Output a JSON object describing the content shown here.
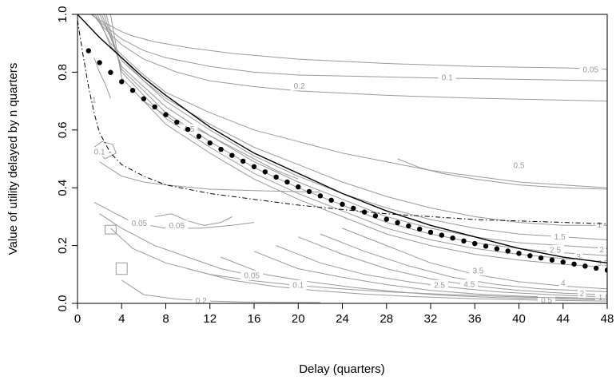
{
  "chart_data": {
    "type": "line",
    "title": "",
    "xlabel": "Delay (quarters)",
    "ylabel": "Value of utility delayed by n quarters",
    "xlim": [
      0,
      48
    ],
    "ylim": [
      0,
      1
    ],
    "x_ticks": [
      0,
      4,
      8,
      12,
      16,
      20,
      24,
      28,
      32,
      36,
      40,
      44,
      48
    ],
    "x_tick_labels": [
      "0",
      "4",
      "8",
      "12",
      "16",
      "20",
      "24",
      "28",
      "32",
      "36",
      "40",
      "44",
      "48"
    ],
    "y_ticks": [
      0,
      0.2,
      0.4,
      0.6,
      0.8,
      1
    ],
    "y_tick_labels": [
      "0.0",
      "0.2",
      "0.4",
      "0.6",
      "0.8",
      "1.0"
    ],
    "grid": false,
    "legend": "none",
    "colors": {
      "contour": "#9a9a9a",
      "curves": "#000000",
      "background": "#ffffff"
    },
    "series": [
      {
        "style": "solid",
        "x": [
          0,
          2,
          4,
          6,
          8,
          12,
          16,
          20,
          24,
          28,
          32,
          36,
          40,
          44,
          48
        ],
        "values": [
          1.0,
          0.92,
          0.85,
          0.78,
          0.72,
          0.61,
          0.52,
          0.45,
          0.38,
          0.32,
          0.27,
          0.23,
          0.19,
          0.16,
          0.14
        ]
      },
      {
        "style": "points",
        "x": [
          1,
          2,
          3,
          4,
          5,
          6,
          7,
          8,
          9,
          10,
          11,
          12,
          13,
          14,
          15,
          16,
          17,
          18,
          19,
          20,
          21,
          22,
          23,
          24,
          25,
          26,
          27,
          28,
          29,
          30,
          31,
          32,
          33,
          34,
          35,
          36,
          37,
          38,
          39,
          40,
          41,
          42,
          43,
          44,
          45,
          46,
          47,
          48
        ],
        "values": [
          0.874,
          0.833,
          0.799,
          0.767,
          0.737,
          0.708,
          0.68,
          0.653,
          0.627,
          0.602,
          0.578,
          0.555,
          0.533,
          0.512,
          0.492,
          0.473,
          0.455,
          0.437,
          0.42,
          0.403,
          0.387,
          0.372,
          0.357,
          0.343,
          0.329,
          0.316,
          0.303,
          0.291,
          0.279,
          0.268,
          0.257,
          0.246,
          0.236,
          0.226,
          0.216,
          0.207,
          0.198,
          0.189,
          0.181,
          0.173,
          0.165,
          0.157,
          0.15,
          0.143,
          0.136,
          0.129,
          0.122,
          0.115
        ]
      },
      {
        "style": "dashdot",
        "x": [
          0,
          0.5,
          1,
          1.5,
          2,
          3,
          4,
          6,
          8,
          10,
          12,
          16,
          20,
          24,
          28,
          32,
          36,
          40,
          44,
          48
        ],
        "values": [
          0.98,
          0.86,
          0.75,
          0.66,
          0.59,
          0.52,
          0.48,
          0.44,
          0.41,
          0.395,
          0.38,
          0.36,
          0.34,
          0.325,
          0.31,
          0.3,
          0.29,
          0.285,
          0.28,
          0.275
        ]
      }
    ],
    "contours": [
      {
        "level": "0.05",
        "x": [
          1.2,
          2,
          3,
          4,
          5,
          7,
          10,
          14,
          20,
          28,
          36,
          44,
          48
        ],
        "y": [
          1,
          0.98,
          0.96,
          0.94,
          0.925,
          0.905,
          0.885,
          0.865,
          0.845,
          0.83,
          0.82,
          0.815,
          0.81
        ],
        "label": {
          "x": 46.5,
          "y": 0.81
        }
      },
      {
        "level": "0.1",
        "x": [
          1.3,
          2,
          3,
          4,
          6,
          8,
          12,
          16,
          20,
          26,
          32,
          40,
          48
        ],
        "y": [
          1,
          0.975,
          0.945,
          0.915,
          0.875,
          0.85,
          0.82,
          0.8,
          0.79,
          0.785,
          0.78,
          0.775,
          0.77
        ],
        "label": {
          "x": 33.5,
          "y": 0.782
        }
      },
      {
        "level": "0.2",
        "x": [
          1.4,
          2,
          3,
          4,
          6,
          9,
          12,
          16,
          20,
          28,
          36,
          48
        ],
        "y": [
          1,
          0.97,
          0.93,
          0.895,
          0.845,
          0.8,
          0.77,
          0.75,
          0.735,
          0.72,
          0.71,
          0.7
        ],
        "label": {
          "x": 20.1,
          "y": 0.753
        }
      },
      {
        "level": "0.5",
        "x": [
          1.6,
          3,
          4,
          6,
          8,
          12,
          16,
          20,
          24,
          28,
          32,
          36,
          40,
          44,
          48
        ],
        "y": [
          1,
          0.9,
          0.86,
          0.79,
          0.73,
          0.66,
          0.6,
          0.56,
          0.52,
          0.49,
          0.46,
          0.44,
          0.42,
          0.41,
          0.4
        ],
        "label": {
          "x": 40.0,
          "y": 0.478
        }
      },
      {
        "level": "1",
        "x": [
          1.8,
          3,
          4,
          6,
          8,
          12,
          16,
          20,
          24,
          28,
          32,
          36,
          40,
          44,
          48
        ],
        "y": [
          1,
          0.89,
          0.85,
          0.77,
          0.71,
          0.62,
          0.54,
          0.48,
          0.42,
          0.37,
          0.33,
          0.3,
          0.28,
          0.27,
          0.27
        ],
        "label": {
          "x": 47.3,
          "y": 0.272
        }
      },
      {
        "level": "1.5",
        "x": [
          2,
          4,
          8,
          12,
          16,
          20,
          24,
          28,
          32,
          36,
          40,
          44,
          48
        ],
        "y": [
          1,
          0.84,
          0.7,
          0.6,
          0.51,
          0.44,
          0.38,
          0.33,
          0.29,
          0.26,
          0.24,
          0.23,
          0.22
        ],
        "label": {
          "x": 43.7,
          "y": 0.23
        }
      },
      {
        "level": "2",
        "x": [
          2.2,
          4,
          8,
          12,
          16,
          20,
          24,
          28,
          32,
          36,
          40,
          44,
          48
        ],
        "y": [
          1,
          0.82,
          0.68,
          0.58,
          0.49,
          0.42,
          0.36,
          0.3,
          0.26,
          0.23,
          0.21,
          0.2,
          0.19
        ],
        "label": {
          "x": 47.5,
          "y": 0.187
        }
      },
      {
        "level": "2.5",
        "x": [
          2.4,
          4,
          8,
          12,
          16,
          20,
          24,
          28,
          32,
          36,
          40,
          44,
          48
        ],
        "y": [
          1,
          0.81,
          0.66,
          0.56,
          0.47,
          0.4,
          0.34,
          0.28,
          0.24,
          0.21,
          0.19,
          0.175,
          0.165
        ],
        "label": {
          "x": 43.3,
          "y": 0.185
        }
      },
      {
        "level": "3",
        "x": [
          2.6,
          4,
          8,
          12,
          16,
          20,
          24,
          28,
          32,
          36,
          40,
          44,
          48
        ],
        "y": [
          1,
          0.8,
          0.64,
          0.54,
          0.45,
          0.38,
          0.32,
          0.26,
          0.22,
          0.19,
          0.17,
          0.155,
          0.145
        ],
        "label": {
          "x": 45.4,
          "y": 0.162
        }
      },
      {
        "level": "3.5",
        "x": [
          3,
          4,
          8,
          12,
          16,
          20,
          24,
          28,
          32,
          36,
          40,
          44,
          48
        ],
        "y": [
          1,
          0.78,
          0.62,
          0.52,
          0.43,
          0.36,
          0.3,
          0.24,
          0.2,
          0.17,
          0.15,
          0.135,
          0.125
        ],
        "label": {
          "x": 47.6,
          "y": 0.14
        }
      },
      {
        "level": "3.5",
        "x": [
          24,
          28,
          32,
          36,
          40,
          44,
          48
        ],
        "y": [
          0.26,
          0.2,
          0.14,
          0.1,
          0.075,
          0.06,
          0.05
        ],
        "label": {
          "x": 36.3,
          "y": 0.113
        }
      },
      {
        "level": "4",
        "x": [
          22,
          26,
          30,
          34,
          38,
          42,
          48
        ],
        "y": [
          0.24,
          0.18,
          0.13,
          0.09,
          0.065,
          0.05,
          0.04
        ],
        "label": {
          "x": 44.0,
          "y": 0.07
        }
      },
      {
        "level": "4.5",
        "x": [
          20,
          24,
          28,
          32,
          36,
          40,
          44,
          48
        ],
        "y": [
          0.23,
          0.17,
          0.12,
          0.085,
          0.06,
          0.045,
          0.035,
          0.03
        ],
        "label": {
          "x": 35.5,
          "y": 0.066
        }
      },
      {
        "level": "4.5",
        "x": [
          6,
          8,
          9,
          10,
          11,
          12,
          13,
          14,
          16,
          18,
          20
        ],
        "y": [
          0.7,
          0.65,
          0.625,
          0.61,
          0.6,
          0.58,
          0.56,
          0.54,
          0.5,
          0.46,
          0.43
        ],
        "label": {
          "x": 10.1,
          "y": 0.603
        }
      },
      {
        "level": "2.5",
        "x": [
          18,
          22,
          26,
          30,
          34,
          38,
          44,
          48
        ],
        "y": [
          0.2,
          0.14,
          0.1,
          0.075,
          0.055,
          0.04,
          0.028,
          0.022
        ],
        "label": {
          "x": 32.8,
          "y": 0.064
        }
      },
      {
        "level": "2",
        "x": [
          16,
          20,
          24,
          28,
          32,
          36,
          40,
          48
        ],
        "y": [
          0.18,
          0.12,
          0.09,
          0.065,
          0.045,
          0.033,
          0.025,
          0.016
        ],
        "label": {
          "x": 45.7,
          "y": 0.034
        }
      },
      {
        "level": "1.5",
        "x": [
          13,
          17,
          21,
          25,
          29,
          33,
          38,
          48
        ],
        "y": [
          0.16,
          0.1,
          0.075,
          0.055,
          0.04,
          0.028,
          0.02,
          0.012
        ],
        "label": {
          "x": 47.7,
          "y": 0.021
        }
      },
      {
        "level": "0.5",
        "x": [
          10,
          14,
          18,
          22,
          26,
          30,
          36,
          42,
          48
        ],
        "y": [
          0.12,
          0.08,
          0.058,
          0.043,
          0.032,
          0.024,
          0.016,
          0.011,
          0.008
        ],
        "label": {
          "x": 42.5,
          "y": 0.011
        }
      },
      {
        "level": "0.1",
        "x": [
          3,
          5,
          8,
          12,
          16,
          20,
          24,
          28,
          34,
          40,
          48
        ],
        "y": [
          0.26,
          0.19,
          0.14,
          0.1,
          0.078,
          0.062,
          0.05,
          0.04,
          0.03,
          0.022,
          0.016
        ],
        "label": {
          "x": 20.0,
          "y": 0.064
        }
      },
      {
        "level": "0.05",
        "x": [
          2,
          4,
          7,
          10,
          13,
          16
        ],
        "y": [
          0.31,
          0.26,
          0.2,
          0.16,
          0.12,
          0.095
        ],
        "label": {
          "x": 15.8,
          "y": 0.097
        }
      },
      {
        "level": "0.05",
        "x": [
          1.5,
          3,
          5,
          8,
          11,
          14,
          16
        ],
        "y": [
          0.35,
          0.32,
          0.28,
          0.26,
          0.26,
          0.27,
          0.28
        ],
        "label": {
          "x": 5.6,
          "y": 0.278
        }
      },
      {
        "level": "0.05",
        "x": [
          7,
          8.5,
          10,
          11.5,
          13,
          14
        ],
        "y": [
          0.3,
          0.31,
          0.285,
          0.27,
          0.28,
          0.3
        ],
        "label": {
          "x": 9.0,
          "y": 0.27
        }
      },
      {
        "level": "0.2",
        "x": [
          4,
          6,
          9,
          12,
          15,
          18,
          22
        ],
        "y": [
          0.08,
          0.03,
          0.015,
          0.008,
          0.005,
          0.004,
          0.003
        ],
        "label": {
          "x": 11.2,
          "y": 0.01
        }
      },
      {
        "level": "0.2",
        "x": [
          2,
          4,
          6,
          8,
          12,
          16,
          22
        ],
        "y": [
          0.49,
          0.44,
          0.42,
          0.41,
          0.395,
          0.39,
          0.385
        ],
        "label": null
      },
      {
        "level": "0.1",
        "x": [
          1.5,
          2.5,
          3.5,
          3.2,
          2.2,
          1.5
        ],
        "y": [
          0.54,
          0.5,
          0.52,
          0.55,
          0.56,
          0.54
        ],
        "label": {
          "x": 2.0,
          "y": 0.525
        }
      },
      {
        "level": "0.05",
        "x": [
          2.5,
          3.5,
          3.5,
          2.5,
          2.5
        ],
        "y": [
          0.27,
          0.27,
          0.24,
          0.24,
          0.27
        ],
        "label": null
      },
      {
        "level": "0.05",
        "x": [
          3.5,
          4.5,
          4.5,
          3.5,
          3.5
        ],
        "y": [
          0.14,
          0.14,
          0.1,
          0.1,
          0.14
        ],
        "label": null
      },
      {
        "level": "1",
        "x": [
          1.5,
          2,
          2.5,
          2.8,
          3
        ],
        "y": [
          0.85,
          0.8,
          0.76,
          0.73,
          0.71
        ],
        "label": {
          "x": 1.5,
          "y": 0.705
        }
      },
      {
        "level": "0.5",
        "x": [
          29,
          31,
          33,
          36,
          40,
          44,
          48
        ],
        "y": [
          0.5,
          0.47,
          0.45,
          0.43,
          0.41,
          0.4,
          0.395
        ],
        "label": null
      }
    ]
  }
}
